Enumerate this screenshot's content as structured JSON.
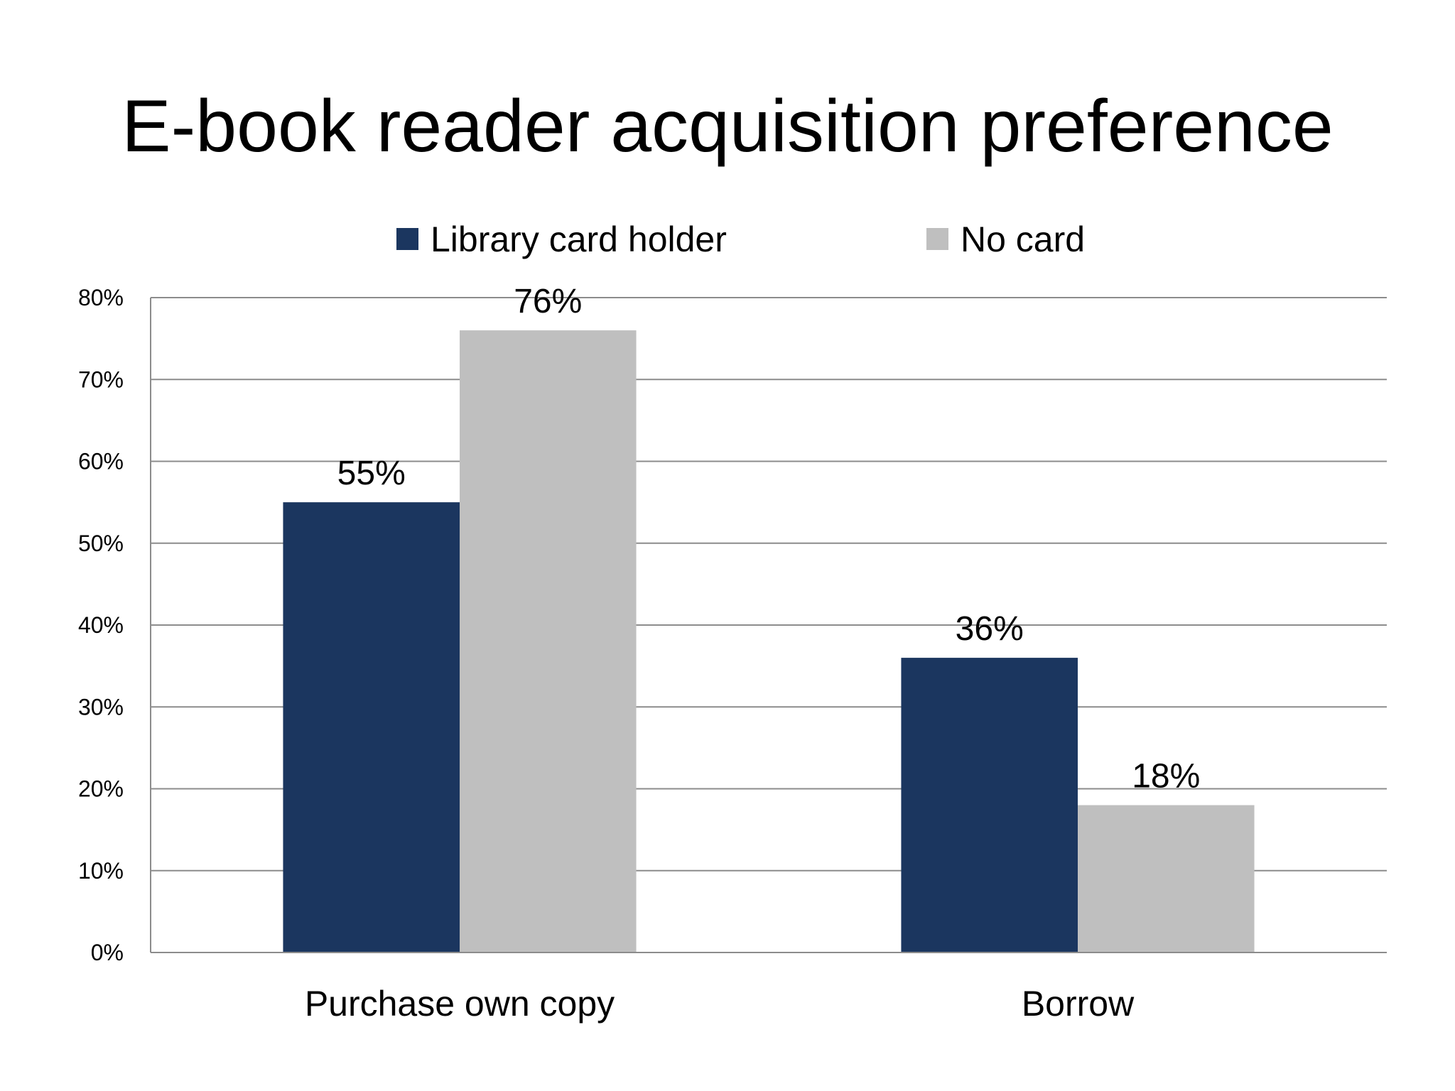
{
  "chart_data": {
    "type": "bar",
    "title": "E-book reader acquisition preference",
    "categories": [
      "Purchase own copy",
      "Borrow"
    ],
    "series": [
      {
        "name": "Library card holder",
        "values": [
          55,
          36
        ],
        "color": "#1b365f",
        "labels": [
          "55%",
          "36%"
        ]
      },
      {
        "name": "No card",
        "values": [
          76,
          18
        ],
        "color": "#bfbfbf",
        "labels": [
          "76%",
          "18%"
        ]
      }
    ],
    "ylim": [
      0,
      80
    ],
    "yticks": [
      0,
      10,
      20,
      30,
      40,
      50,
      60,
      70,
      80
    ],
    "ytick_labels": [
      "0%",
      "10%",
      "20%",
      "30%",
      "40%",
      "50%",
      "60%",
      "70%",
      "80%"
    ],
    "grid": true,
    "legend_position": "top"
  }
}
